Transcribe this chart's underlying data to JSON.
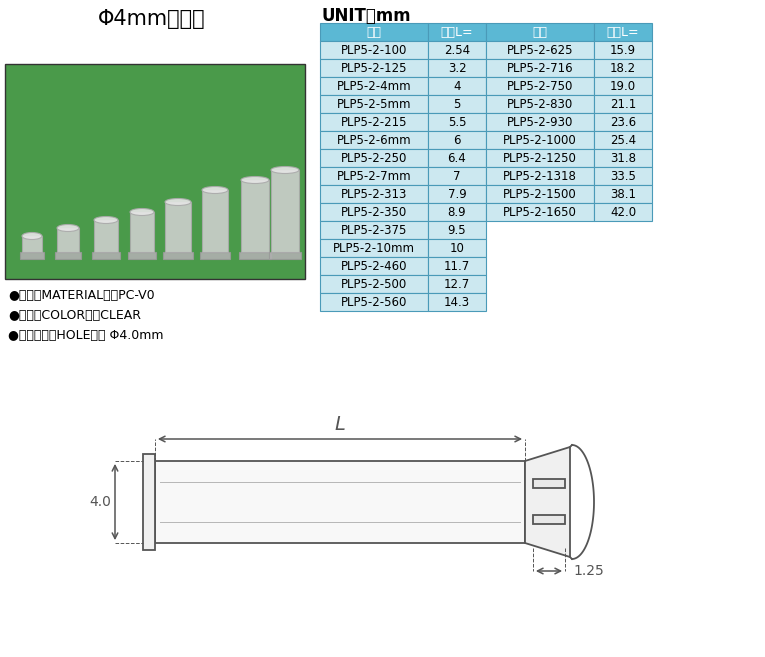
{
  "title": "Φ4mm导光柱",
  "unit_label": "UNIT：mm",
  "header_bg": "#5bb8d4",
  "row_bg": "#cce8f0",
  "table_border": "#4a9ab8",
  "header_text_color": "#ffffff",
  "cell_text_color": "#000000",
  "col_header": [
    "型号",
    "长度L=",
    "型号",
    "长度L="
  ],
  "left_data": [
    [
      "PLP5-2-100",
      "2.54"
    ],
    [
      "PLP5-2-125",
      "3.2"
    ],
    [
      "PLP5-2-4mm",
      "4"
    ],
    [
      "PLP5-2-5mm",
      "5"
    ],
    [
      "PLP5-2-215",
      "5.5"
    ],
    [
      "PLP5-2-6mm",
      "6"
    ],
    [
      "PLP5-2-250",
      "6.4"
    ],
    [
      "PLP5-2-7mm",
      "7"
    ],
    [
      "PLP5-2-313",
      "7.9"
    ],
    [
      "PLP5-2-350",
      "8.9"
    ],
    [
      "PLP5-2-375",
      "9.5"
    ],
    [
      "PLP5-2-10mm",
      "10"
    ],
    [
      "PLP5-2-460",
      "11.7"
    ],
    [
      "PLP5-2-500",
      "12.7"
    ],
    [
      "PLP5-2-560",
      "14.3"
    ]
  ],
  "right_data": [
    [
      "PLP5-2-625",
      "15.9"
    ],
    [
      "PLP5-2-716",
      "18.2"
    ],
    [
      "PLP5-2-750",
      "19.0"
    ],
    [
      "PLP5-2-830",
      "21.1"
    ],
    [
      "PLP5-2-930",
      "23.6"
    ],
    [
      "PLP5-2-1000",
      "25.4"
    ],
    [
      "PLP5-2-1250",
      "31.8"
    ],
    [
      "PLP5-2-1318",
      "33.5"
    ],
    [
      "PLP5-2-1500",
      "38.1"
    ],
    [
      "PLP5-2-1650",
      "42.0"
    ]
  ],
  "bullet_items": [
    "●材质（MATERIAL）：PC-V0",
    "●颜色（COLOR）：CLEAR",
    "●配合孔径（HOLE）： Φ4.0mm"
  ],
  "bg_color": "#ffffff",
  "text_color": "#000000",
  "draw_color": "#555555",
  "dim_label_L": "L",
  "dim_label_40": "4.0",
  "dim_label_125": "1.25",
  "photo_bg": "#4a9a4a",
  "photo_border": "#333333"
}
